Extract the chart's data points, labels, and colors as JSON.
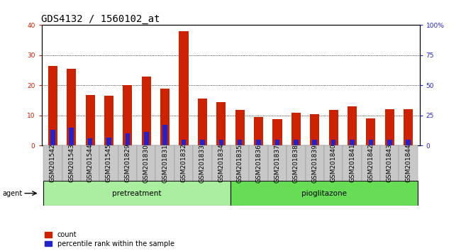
{
  "title": "GDS4132 / 1560102_at",
  "samples": [
    "GSM201542",
    "GSM201543",
    "GSM201544",
    "GSM201545",
    "GSM201829",
    "GSM201830",
    "GSM201831",
    "GSM201832",
    "GSM201833",
    "GSM201834",
    "GSM201835",
    "GSM201836",
    "GSM201837",
    "GSM201838",
    "GSM201839",
    "GSM201840",
    "GSM201841",
    "GSM201842",
    "GSM201843",
    "GSM201844"
  ],
  "count_values": [
    26.5,
    25.5,
    16.8,
    16.5,
    20.0,
    23.0,
    19.0,
    38.0,
    15.7,
    14.5,
    11.8,
    9.5,
    8.8,
    11.0,
    10.5,
    11.8,
    13.0,
    9.0,
    12.0,
    12.0
  ],
  "percentile_values": [
    13.0,
    15.0,
    6.0,
    6.5,
    10.0,
    11.5,
    17.5,
    5.0,
    5.0,
    5.0,
    5.0,
    5.0,
    5.0,
    5.0,
    5.0,
    5.0,
    5.0,
    5.0,
    5.0,
    5.0
  ],
  "pretreatment_count": 10,
  "pioglitazone_count": 10,
  "bar_color_red": "#cc2200",
  "bar_color_blue": "#2222cc",
  "bar_width": 0.5,
  "blue_bar_width": 0.25,
  "ylim_left": [
    0,
    40
  ],
  "ylim_right": [
    0,
    100
  ],
  "yticks_left": [
    0,
    10,
    20,
    30,
    40
  ],
  "yticks_right": [
    0,
    25,
    50,
    75,
    100
  ],
  "ytick_labels_right": [
    "0",
    "25",
    "50",
    "75",
    "100%"
  ],
  "bg_agent_pre": "#aaeea0",
  "bg_agent_pio": "#66dd55",
  "agent_label": "agent",
  "pretreatment_label": "pretreatment",
  "pioglitazone_label": "pioglitazone",
  "legend_count_label": "count",
  "legend_percentile_label": "percentile rank within the sample",
  "title_fontsize": 10,
  "tick_fontsize": 6.5,
  "legend_fontsize": 7
}
